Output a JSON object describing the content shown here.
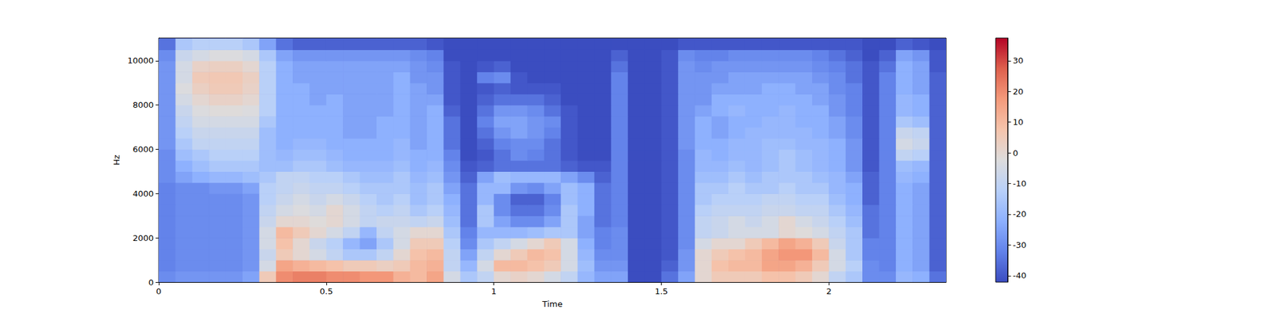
{
  "chart_data": {
    "type": "heatmap",
    "xlabel": "Time",
    "ylabel": "Hz",
    "x": [
      0,
      0.05,
      0.1,
      0.15,
      0.2,
      0.25,
      0.3,
      0.35,
      0.4,
      0.45,
      0.5,
      0.55,
      0.6,
      0.65,
      0.7,
      0.75,
      0.8,
      0.85,
      0.9,
      0.95,
      1,
      1.05,
      1.1,
      1.15,
      1.2,
      1.25,
      1.3,
      1.35,
      1.4,
      1.45,
      1.5,
      1.55,
      1.6,
      1.65,
      1.7,
      1.75,
      1.8,
      1.85,
      1.9,
      1.95,
      2,
      2.05,
      2.1,
      2.15,
      2.2,
      2.25,
      2.3
    ],
    "y": [
      0,
      500,
      1000,
      1500,
      2000,
      2500,
      3000,
      3500,
      4000,
      4500,
      5000,
      5500,
      6000,
      6500,
      7000,
      7500,
      8000,
      8500,
      9000,
      9500,
      10000,
      10500
    ],
    "cells": [
      [
        -30,
        -28,
        -28,
        -28,
        -28,
        -25,
        5,
        20,
        22,
        22,
        20,
        20,
        18,
        18,
        12,
        10,
        15,
        -5,
        -15,
        -10,
        0,
        2,
        0,
        -5,
        -10,
        -20,
        -25,
        -25,
        -42,
        -42,
        -35,
        -25,
        0,
        5,
        5,
        5,
        8,
        8,
        5,
        0,
        -10,
        -15,
        -30,
        -30,
        -20,
        -22,
        -35
      ],
      [
        -32,
        -30,
        -30,
        -30,
        -30,
        -28,
        -5,
        15,
        12,
        10,
        8,
        5,
        5,
        3,
        5,
        10,
        12,
        -10,
        -20,
        -5,
        10,
        10,
        8,
        5,
        -5,
        -18,
        -28,
        -28,
        -42,
        -42,
        -38,
        -28,
        0,
        8,
        10,
        10,
        15,
        15,
        12,
        5,
        -5,
        -12,
        -30,
        -32,
        -22,
        -25,
        -38
      ],
      [
        -32,
        -30,
        -30,
        -30,
        -30,
        -28,
        -8,
        5,
        0,
        -5,
        -10,
        -15,
        -15,
        -10,
        0,
        8,
        10,
        -10,
        -25,
        -10,
        0,
        5,
        10,
        8,
        -5,
        -20,
        -30,
        -30,
        -42,
        -42,
        -40,
        -28,
        0,
        5,
        8,
        10,
        15,
        18,
        18,
        10,
        -5,
        -15,
        -32,
        -32,
        -22,
        -25,
        -38
      ],
      [
        -32,
        -30,
        -30,
        -30,
        -30,
        -28,
        -5,
        8,
        0,
        -8,
        -12,
        -20,
        -25,
        -15,
        -5,
        5,
        5,
        -12,
        -30,
        -15,
        -10,
        -5,
        0,
        5,
        -5,
        -22,
        -32,
        -30,
        -42,
        -42,
        -40,
        -30,
        -5,
        0,
        0,
        5,
        10,
        15,
        12,
        5,
        -8,
        -15,
        -32,
        -32,
        -22,
        -25,
        -38
      ],
      [
        -32,
        -30,
        -30,
        -30,
        -30,
        -28,
        -5,
        10,
        5,
        0,
        -5,
        -10,
        -20,
        -10,
        -5,
        0,
        0,
        -15,
        -32,
        -20,
        -20,
        -20,
        -18,
        -15,
        -15,
        -25,
        -32,
        -30,
        -42,
        -42,
        -40,
        -30,
        -10,
        -8,
        -5,
        -5,
        -5,
        0,
        -2,
        -5,
        -10,
        -15,
        -35,
        -32,
        -22,
        -25,
        -38
      ],
      [
        -32,
        -30,
        -30,
        -30,
        -30,
        -28,
        -8,
        0,
        0,
        -2,
        0,
        -5,
        -10,
        -8,
        -8,
        -10,
        -8,
        -18,
        -35,
        -15,
        -25,
        -30,
        -30,
        -25,
        -15,
        -25,
        -35,
        -32,
        -42,
        -42,
        -40,
        -30,
        -10,
        -8,
        -5,
        -8,
        -5,
        0,
        -5,
        -8,
        -12,
        -18,
        -35,
        -32,
        -22,
        -25,
        -38
      ],
      [
        -32,
        -30,
        -30,
        -30,
        -30,
        -28,
        -10,
        -5,
        -3,
        -5,
        0,
        -5,
        -10,
        -12,
        -10,
        -15,
        -12,
        -20,
        -35,
        -15,
        -30,
        -35,
        -35,
        -30,
        -15,
        -22,
        -35,
        -32,
        -42,
        -42,
        -40,
        -30,
        -12,
        -10,
        -10,
        -10,
        -8,
        -8,
        -10,
        -10,
        -15,
        -20,
        -35,
        -32,
        -22,
        -25,
        -38
      ],
      [
        -32,
        -30,
        -30,
        -30,
        -30,
        -28,
        -12,
        -8,
        -5,
        -8,
        -5,
        -8,
        -12,
        -15,
        -12,
        -18,
        -15,
        -22,
        -35,
        -20,
        -30,
        -38,
        -38,
        -32,
        -18,
        -22,
        -35,
        -32,
        -42,
        -42,
        -40,
        -30,
        -15,
        -12,
        -12,
        -12,
        -10,
        -10,
        -12,
        -12,
        -18,
        -22,
        -38,
        -32,
        -22,
        -25,
        -38
      ],
      [
        -32,
        -30,
        -30,
        -28,
        -28,
        -25,
        -12,
        -10,
        -8,
        -10,
        -10,
        -12,
        -15,
        -15,
        -15,
        -18,
        -15,
        -25,
        -35,
        -20,
        -20,
        -28,
        -30,
        -25,
        -18,
        -22,
        -35,
        -32,
        -42,
        -42,
        -40,
        -30,
        -15,
        -15,
        -12,
        -15,
        -15,
        -12,
        -15,
        -15,
        -20,
        -22,
        -38,
        -32,
        -22,
        -25,
        -38
      ],
      [
        -30,
        -25,
        -22,
        -20,
        -20,
        -18,
        -15,
        -10,
        -10,
        -12,
        -12,
        -15,
        -18,
        -18,
        -15,
        -20,
        -18,
        -28,
        -38,
        -25,
        -18,
        -20,
        -20,
        -20,
        -25,
        -30,
        -38,
        -32,
        -42,
        -42,
        -40,
        -30,
        -18,
        -18,
        -15,
        -18,
        -15,
        -15,
        -15,
        -18,
        -20,
        -25,
        -38,
        -32,
        -20,
        -22,
        -38
      ],
      [
        -30,
        -22,
        -18,
        -15,
        -15,
        -15,
        -18,
        -18,
        -15,
        -15,
        -18,
        -20,
        -20,
        -20,
        -18,
        -22,
        -20,
        -30,
        -40,
        -38,
        -35,
        -35,
        -35,
        -35,
        -38,
        -40,
        -40,
        -32,
        -42,
        -42,
        -40,
        -30,
        -20,
        -20,
        -18,
        -20,
        -18,
        -15,
        -18,
        -20,
        -22,
        -28,
        -40,
        -32,
        -18,
        -20,
        -38
      ],
      [
        -30,
        -18,
        -15,
        -12,
        -12,
        -12,
        -18,
        -20,
        -18,
        -18,
        -20,
        -22,
        -22,
        -22,
        -20,
        -22,
        -22,
        -32,
        -42,
        -40,
        -35,
        -30,
        -32,
        -35,
        -40,
        -42,
        -42,
        -32,
        -42,
        -42,
        -40,
        -30,
        -20,
        -22,
        -20,
        -20,
        -18,
        -15,
        -18,
        -20,
        -22,
        -28,
        -40,
        -32,
        -10,
        -12,
        -38
      ],
      [
        -28,
        -15,
        -10,
        -10,
        -10,
        -10,
        -18,
        -22,
        -20,
        -20,
        -22,
        -22,
        -22,
        -22,
        -20,
        -25,
        -22,
        -35,
        -42,
        -38,
        -32,
        -30,
        -30,
        -35,
        -40,
        -42,
        -42,
        -32,
        -42,
        -42,
        -40,
        -28,
        -22,
        -22,
        -20,
        -20,
        -18,
        -18,
        -20,
        -20,
        -22,
        -28,
        -40,
        -32,
        -5,
        -8,
        -38
      ],
      [
        -28,
        -12,
        -8,
        -8,
        -8,
        -8,
        -18,
        -22,
        -22,
        -22,
        -22,
        -25,
        -25,
        -22,
        -22,
        -25,
        -22,
        -35,
        -42,
        -35,
        -28,
        -25,
        -28,
        -32,
        -40,
        -42,
        -42,
        -32,
        -42,
        -42,
        -40,
        -28,
        -22,
        -25,
        -22,
        -20,
        -20,
        -20,
        -20,
        -22,
        -25,
        -30,
        -40,
        -32,
        -8,
        -10,
        -38
      ],
      [
        -28,
        -10,
        -5,
        -5,
        -5,
        -5,
        -15,
        -22,
        -22,
        -22,
        -22,
        -25,
        -25,
        -22,
        -22,
        -25,
        -22,
        -35,
        -42,
        -32,
        -25,
        -25,
        -28,
        -30,
        -40,
        -42,
        -42,
        -32,
        -42,
        -42,
        -40,
        -28,
        -22,
        -25,
        -22,
        -22,
        -20,
        -20,
        -22,
        -22,
        -25,
        -30,
        -40,
        -32,
        -15,
        -18,
        -38
      ],
      [
        -28,
        -8,
        -3,
        -2,
        -2,
        -3,
        -12,
        -22,
        -22,
        -22,
        -22,
        -25,
        -25,
        -25,
        -22,
        -25,
        -22,
        -38,
        -42,
        -35,
        -28,
        -28,
        -30,
        -35,
        -40,
        -42,
        -42,
        -32,
        -42,
        -42,
        -40,
        -28,
        -25,
        -22,
        -20,
        -22,
        -22,
        -20,
        -22,
        -22,
        -28,
        -32,
        -40,
        -32,
        -20,
        -22,
        -38
      ],
      [
        -28,
        -5,
        0,
        2,
        2,
        0,
        -12,
        -22,
        -22,
        -25,
        -22,
        -25,
        -25,
        -25,
        -22,
        -25,
        -25,
        -40,
        -42,
        -38,
        -35,
        -35,
        -35,
        -38,
        -42,
        -42,
        -42,
        -32,
        -42,
        -42,
        -40,
        -28,
        -28,
        -22,
        -22,
        -22,
        -22,
        -22,
        -22,
        -25,
        -28,
        -32,
        -40,
        -32,
        -20,
        -22,
        -38
      ],
      [
        -28,
        -3,
        3,
        5,
        5,
        2,
        -12,
        -22,
        -22,
        -25,
        -25,
        -25,
        -25,
        -25,
        -22,
        -25,
        -28,
        -40,
        -42,
        -40,
        -38,
        -40,
        -40,
        -40,
        -42,
        -42,
        -42,
        -32,
        -42,
        -42,
        -40,
        -28,
        -28,
        -25,
        -25,
        -25,
        -22,
        -22,
        -25,
        -25,
        -30,
        -32,
        -40,
        -32,
        -22,
        -25,
        -38
      ],
      [
        -28,
        -5,
        5,
        6,
        6,
        3,
        -12,
        -22,
        -25,
        -25,
        -25,
        -25,
        -25,
        -25,
        -22,
        -28,
        -28,
        -40,
        -42,
        -32,
        -30,
        -40,
        -42,
        -42,
        -42,
        -42,
        -42,
        -32,
        -42,
        -42,
        -40,
        -28,
        -28,
        -28,
        -25,
        -25,
        -25,
        -25,
        -25,
        -28,
        -30,
        -35,
        -40,
        -32,
        -22,
        -25,
        -38
      ],
      [
        -28,
        -5,
        2,
        3,
        3,
        0,
        -12,
        -22,
        -25,
        -25,
        -25,
        -25,
        -25,
        -25,
        -25,
        -28,
        -30,
        -40,
        -42,
        -40,
        -38,
        -42,
        -42,
        -42,
        -42,
        -42,
        -42,
        -35,
        -42,
        -42,
        -40,
        -28,
        -30,
        -28,
        -28,
        -28,
        -28,
        -28,
        -28,
        -30,
        -32,
        -35,
        -40,
        -35,
        -22,
        -25,
        -40
      ],
      [
        -30,
        -8,
        -5,
        -3,
        -3,
        -5,
        -15,
        -25,
        -28,
        -28,
        -28,
        -28,
        -28,
        -28,
        -28,
        -30,
        -32,
        -42,
        -42,
        -42,
        -42,
        -42,
        -42,
        -42,
        -42,
        -42,
        -42,
        -38,
        -42,
        -42,
        -40,
        -30,
        -32,
        -32,
        -30,
        -30,
        -30,
        -30,
        -30,
        -32,
        -35,
        -38,
        -42,
        -38,
        -25,
        -28,
        -40
      ],
      [
        -35,
        -15,
        -12,
        -12,
        -12,
        -15,
        -25,
        -35,
        -38,
        -38,
        -38,
        -38,
        -38,
        -38,
        -38,
        -38,
        -40,
        -42,
        -42,
        -42,
        -42,
        -42,
        -42,
        -42,
        -42,
        -42,
        -42,
        -42,
        -42,
        -42,
        -42,
        -40,
        -40,
        -40,
        -40,
        -40,
        -40,
        -40,
        -40,
        -40,
        -40,
        -40,
        -42,
        -42,
        -38,
        -40,
        -42
      ]
    ],
    "xlim": [
      0,
      2.35
    ],
    "ylim": [
      0,
      11025
    ],
    "xticks": [
      0,
      0.5,
      1,
      1.5,
      2
    ],
    "yticks": [
      0,
      2000,
      4000,
      6000,
      8000,
      10000
    ],
    "colorbar": {
      "range": [
        -42.1,
        37.4
      ],
      "ticks": [
        -40,
        -30,
        -20,
        -10,
        0,
        10,
        20,
        30
      ]
    }
  }
}
